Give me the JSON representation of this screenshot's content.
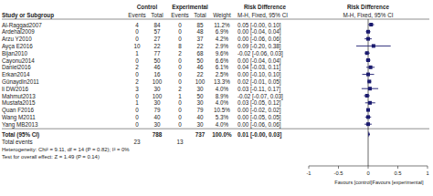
{
  "chart_data": {
    "type": "forest",
    "group_headers": [
      "Control",
      "Experimental",
      "Risk Difference"
    ],
    "column_headers": [
      "Study or Subgroup",
      "Events",
      "Total",
      "Events",
      "Total",
      "Weight",
      "M-H, Fixed, 95% CI"
    ],
    "plot_headers": [
      "Risk Difference",
      "M-H, Fixed, 95% CI"
    ],
    "categories": [
      "Al-Raggad2007",
      "Ardehal2009",
      "Arzu Y2010",
      "Ayça E2016",
      "Bijan2010",
      "Cayonu2014",
      "Daniel2016",
      "Erkan2014",
      "GünaydIn2011",
      "li DW2016",
      "Mahmut2013",
      "Mustafa2015",
      "Quan F2016",
      "Wang M2011",
      "Yang MB2013"
    ],
    "ctrl_events": [
      4,
      0,
      0,
      10,
      1,
      0,
      2,
      0,
      2,
      3,
      0,
      1,
      0,
      0,
      0
    ],
    "ctrl_totals": [
      84,
      57,
      27,
      22,
      77,
      50,
      46,
      16,
      100,
      30,
      100,
      30,
      79,
      40,
      30
    ],
    "exp_events": [
      0,
      0,
      0,
      8,
      2,
      0,
      0,
      0,
      0,
      2,
      1,
      0,
      0,
      0,
      0
    ],
    "exp_totals": [
      85,
      48,
      37,
      22,
      68,
      50,
      46,
      22,
      100,
      30,
      50,
      30,
      79,
      40,
      30
    ],
    "weights": [
      "11.2%",
      "6.9%",
      "4.2%",
      "2.9%",
      "9.6%",
      "6.6%",
      "6.1%",
      "2.5%",
      "13.3%",
      "4.0%",
      "8.9%",
      "4.0%",
      "10.5%",
      "5.3%",
      "4.0%"
    ],
    "values": [
      0.05,
      0.0,
      0.0,
      0.09,
      -0.02,
      0.0,
      0.04,
      0.0,
      0.02,
      0.03,
      -0.02,
      0.03,
      0.0,
      0.0,
      0.0
    ],
    "lo": [
      -0.0,
      -0.04,
      -0.06,
      -0.2,
      -0.06,
      -0.04,
      -0.03,
      -0.1,
      -0.01,
      -0.11,
      -0.07,
      -0.05,
      -0.02,
      -0.05,
      -0.06
    ],
    "hi": [
      0.1,
      0.04,
      0.06,
      0.38,
      0.03,
      0.04,
      0.11,
      0.1,
      0.05,
      0.17,
      0.03,
      0.12,
      0.02,
      0.05,
      0.06
    ],
    "value_labels": [
      "0.05 [-0.00, 0.10]",
      "0.00 [-0.04, 0.04]",
      "0.00 [-0.06, 0.06]",
      "0.09 [-0.20, 0.38]",
      "-0.02 [-0.06, 0.03]",
      "0.00 [-0.04, 0.04]",
      "0.04 [-0.03, 0.11]",
      "0.00 [-0.10, 0.10]",
      "0.02 [-0.01, 0.05]",
      "0.03 [-0.11, 0.17]",
      "-0.02 [-0.07, 0.03]",
      "0.03 [-0.05, 0.12]",
      "0.00 [-0.02, 0.02]",
      "0.00 [-0.05, 0.05]",
      "0.00 [-0.06, 0.06]"
    ],
    "total": {
      "label": "Total (95% CI)",
      "ctrl_total": 788,
      "exp_total": 737,
      "weight": "100.0%",
      "value": 0.01,
      "lo": 0.0,
      "hi": 0.03,
      "value_label": "0.01 [-0.00, 0.03]"
    },
    "total_events": {
      "label": "Total events",
      "ctrl": 23,
      "exp": 13
    },
    "heterogeneity": "Heterogeneity: Chi² = 9.11, df = 14 (P = 0.82); I² = 0%",
    "overall_test": "Test for overall effect: Z = 1.49 (P = 0.14)",
    "xlim": [
      -1.0,
      1.0
    ],
    "xticks": [
      -1,
      -0.5,
      0,
      0.5,
      1
    ],
    "xlabel_left": "Favours [control]",
    "xlabel_right": "Favours [experimental]",
    "color": "#1a1a6e"
  }
}
